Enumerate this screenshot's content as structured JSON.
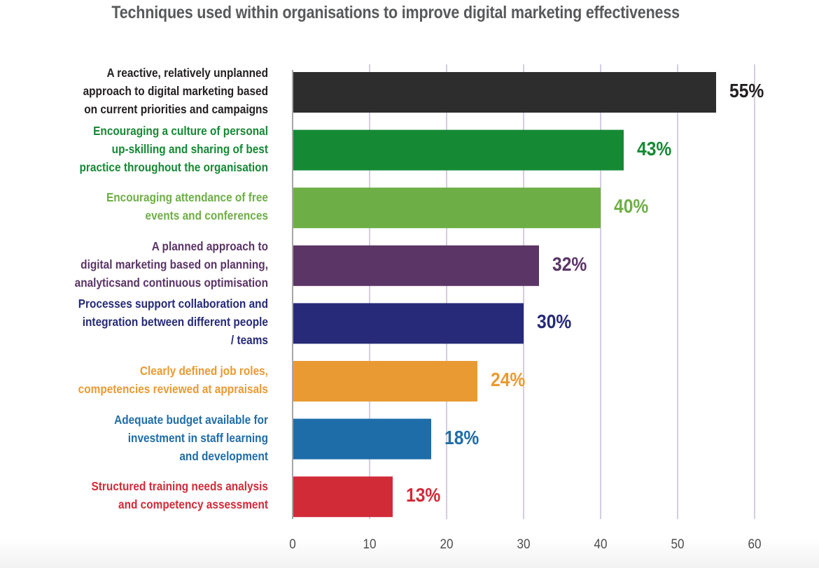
{
  "chart_data": {
    "type": "bar",
    "orientation": "horizontal",
    "title": "Techniques used within organisations to improve digital marketing effectiveness",
    "xlabel": "",
    "ylabel": "",
    "xlim": [
      0,
      60
    ],
    "xticks": [
      0,
      10,
      20,
      30,
      40,
      50,
      60
    ],
    "grid": true,
    "legend": "none",
    "categories": [
      "A reactive, relatively unplanned\napproach to digital marketing based\non current priorities and campaigns",
      "Encouraging a culture of personal\nup-skilling and sharing of best\npractice throughout the organisation",
      "Encouraging attendance of free\nevents and conferences",
      "A planned approach to\ndigital marketing based on planning,\nanalyticsand continuous optimisation",
      "Processes support collaboration and\nintegration between different people\n/ teams",
      "Clearly defined job roles,\ncompetencies reviewed at appraisals",
      "Adequate budget available for\ninvestment in staff learning\nand development",
      "Structured training needs analysis\nand competency assessment"
    ],
    "values": [
      55,
      43,
      40,
      32,
      30,
      24,
      18,
      13
    ],
    "value_labels": [
      "55%",
      "43%",
      "40%",
      "32%",
      "30%",
      "24%",
      "18%",
      "13%"
    ],
    "colors": [
      "#2d2d2d",
      "#168935",
      "#6daf46",
      "#5a3566",
      "#262a78",
      "#e99a32",
      "#1f6da8",
      "#d12b38"
    ],
    "label_colors": [
      "#231f20",
      "#168935",
      "#6daf46",
      "#5a3566",
      "#262a78",
      "#e99a32",
      "#1f6da8",
      "#d12b38"
    ]
  },
  "colors": {
    "title": "#58595b",
    "grid": "#a89bc0",
    "axis": "#8a8a8a",
    "tick_text": "#4d4d4f"
  }
}
